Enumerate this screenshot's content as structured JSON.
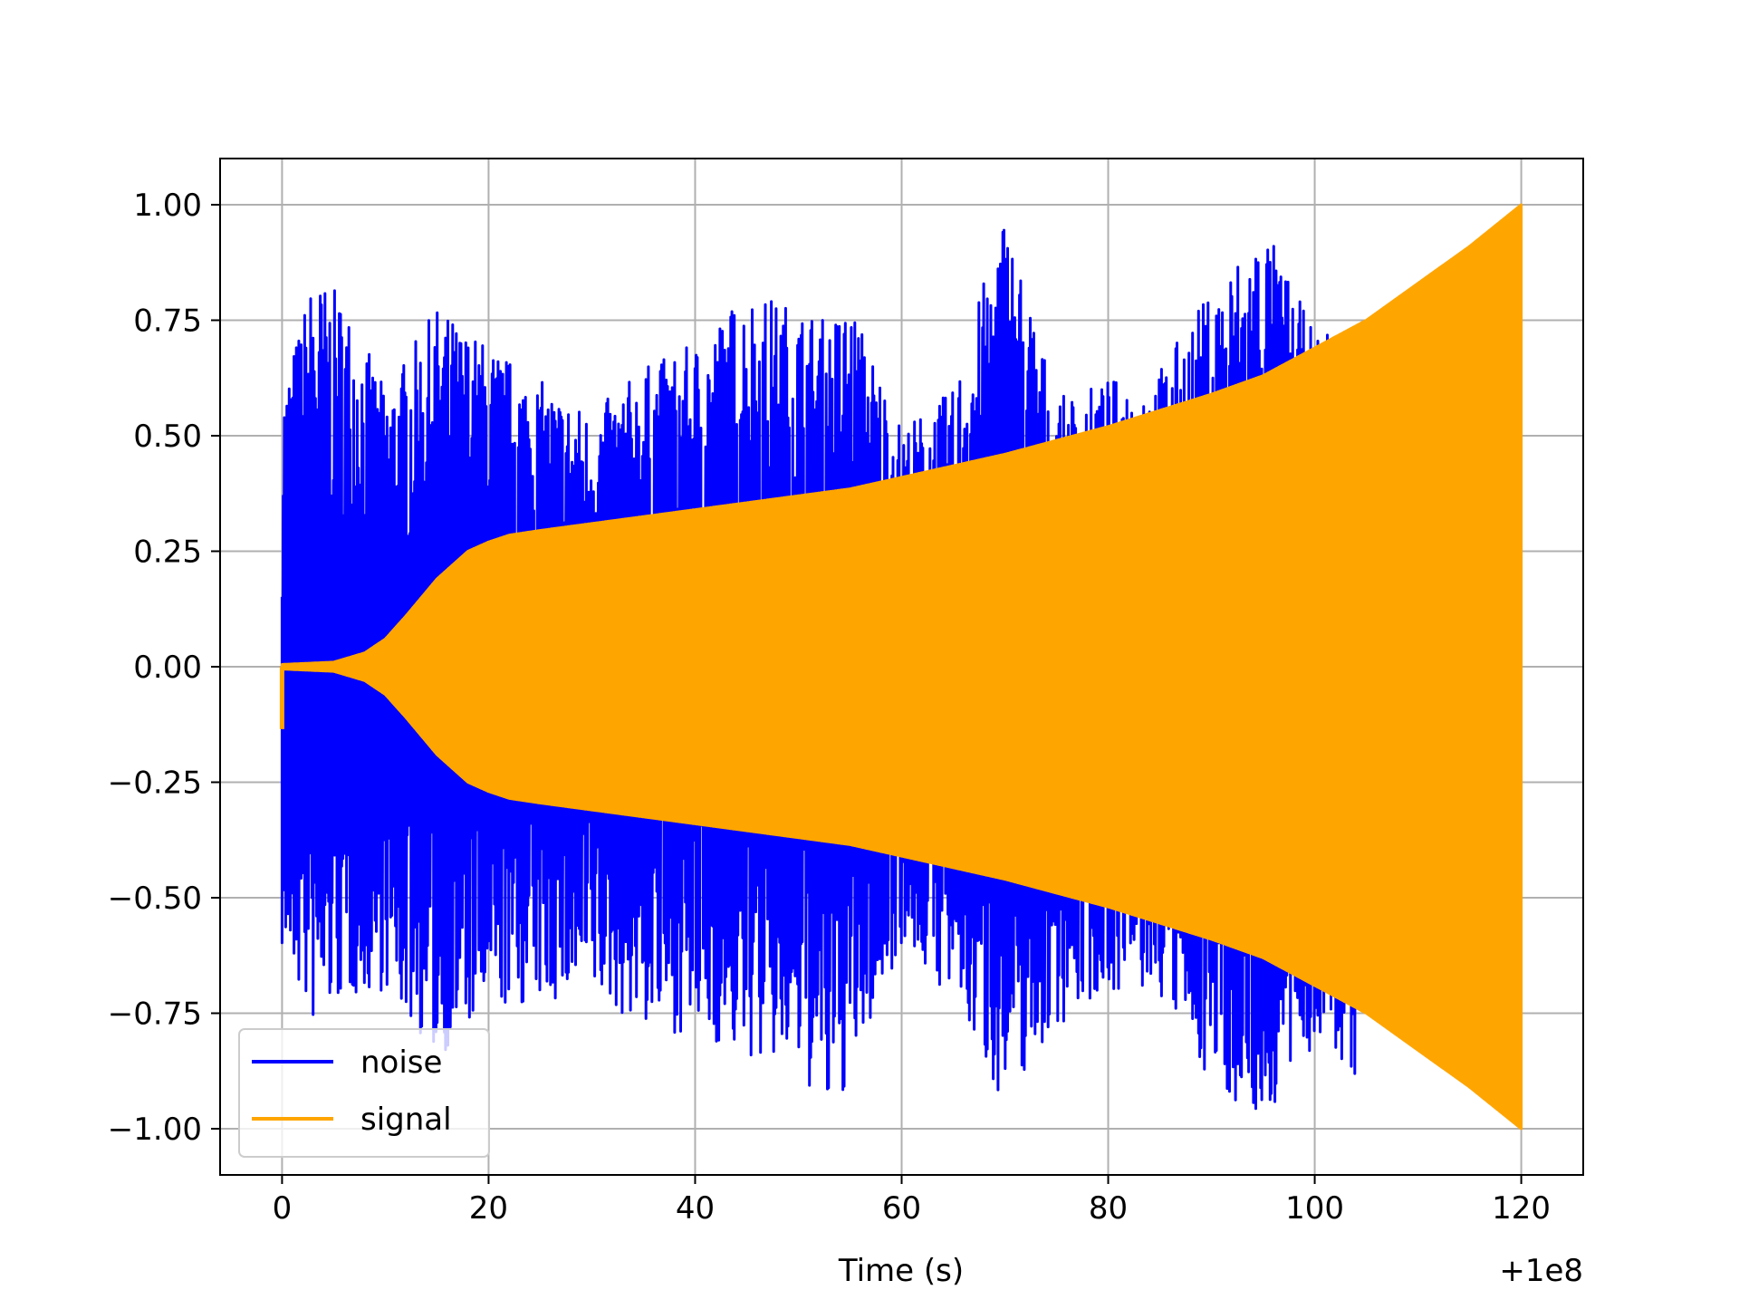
{
  "chart_data": {
    "type": "line",
    "title": "",
    "xlabel": "Time (s)",
    "ylabel": "",
    "x_offset_label": "+1e8",
    "xlim": [
      -6,
      126
    ],
    "ylim": [
      -1.1,
      1.1
    ],
    "grid": true,
    "x_ticks": [
      0,
      20,
      40,
      60,
      80,
      100,
      120
    ],
    "x_tick_labels": [
      "0",
      "20",
      "40",
      "60",
      "80",
      "100",
      "120"
    ],
    "y_ticks": [
      1.0,
      0.75,
      0.5,
      0.25,
      0.0,
      -0.25,
      -0.5,
      -0.75,
      -1.0
    ],
    "y_tick_labels": [
      "1.00",
      "0.75",
      "0.50",
      "0.25",
      "0.00",
      "−0.25",
      "−0.50",
      "−0.75",
      "−1.00"
    ],
    "legend_position": "lower-left",
    "series": [
      {
        "name": "noise",
        "color": "#0000ff",
        "envelope": {
          "x": [
            0,
            3,
            6,
            10,
            15,
            20,
            25,
            30,
            35,
            40,
            45,
            50,
            53,
            55,
            60,
            65,
            70,
            75,
            80,
            85,
            90,
            95,
            100,
            104
          ],
          "upper": [
            0.6,
            0.85,
            0.8,
            0.6,
            0.78,
            0.7,
            0.62,
            0.55,
            0.65,
            0.7,
            0.82,
            0.78,
            0.75,
            0.8,
            0.52,
            0.6,
            1.0,
            0.58,
            0.62,
            0.65,
            0.82,
            0.97,
            0.72,
            0.75
          ],
          "lower": [
            -0.62,
            -0.78,
            -0.72,
            -0.7,
            -0.85,
            -0.75,
            -0.73,
            -0.72,
            -0.78,
            -0.8,
            -0.85,
            -0.88,
            -0.99,
            -0.9,
            -0.6,
            -0.73,
            -0.95,
            -0.78,
            -0.7,
            -0.72,
            -0.9,
            -1.0,
            -0.82,
            -0.9
          ]
        }
      },
      {
        "name": "signal",
        "color": "#ffa500",
        "envelope": {
          "x": [
            0,
            5,
            8,
            10,
            12,
            15,
            18,
            20,
            22,
            25,
            30,
            40,
            50,
            55,
            60,
            70,
            80,
            90,
            95,
            100,
            105,
            110,
            115,
            120
          ],
          "amplitude": [
            0.005,
            0.01,
            0.03,
            0.06,
            0.11,
            0.19,
            0.25,
            0.27,
            0.285,
            0.295,
            0.31,
            0.34,
            0.37,
            0.385,
            0.41,
            0.46,
            0.52,
            0.59,
            0.63,
            0.69,
            0.75,
            0.83,
            0.91,
            1.0
          ]
        }
      }
    ]
  }
}
